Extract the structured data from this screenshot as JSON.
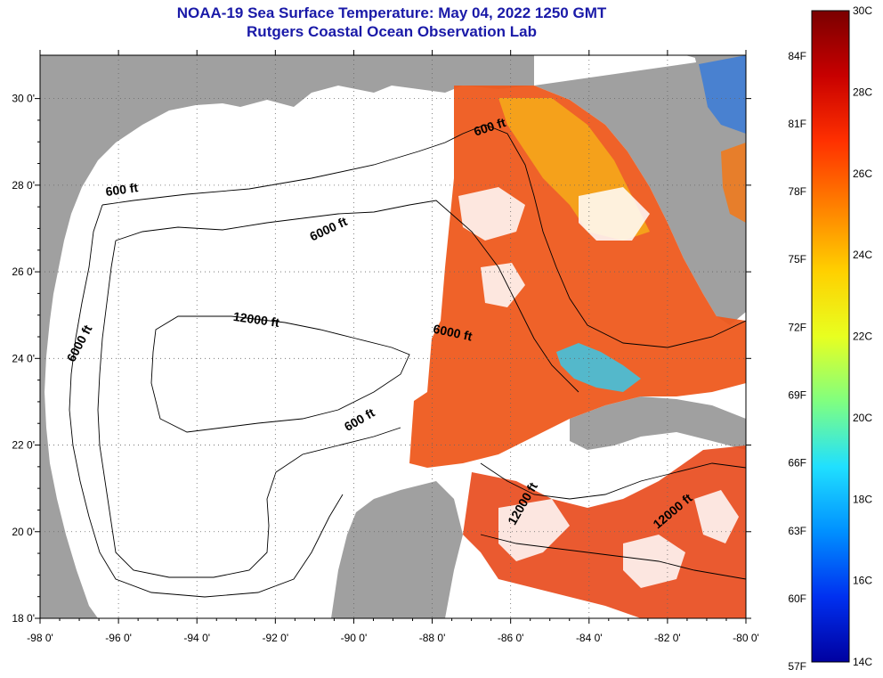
{
  "title": {
    "line1": "NOAA-19 Sea Surface Temperature:  May 04, 2022 1250 GMT",
    "line2": "Rutgers Coastal Ocean Observation Lab"
  },
  "map": {
    "lon_range": [
      -98,
      -80
    ],
    "lat_range": [
      18,
      31
    ],
    "x_ticks": [
      {
        "value": -98,
        "label": "-98 0'"
      },
      {
        "value": -96,
        "label": "-96 0'"
      },
      {
        "value": -94,
        "label": "-94 0'"
      },
      {
        "value": -92,
        "label": "-92 0'"
      },
      {
        "value": -90,
        "label": "-90 0'"
      },
      {
        "value": -88,
        "label": "-88 0'"
      },
      {
        "value": -86,
        "label": "-86 0'"
      },
      {
        "value": -84,
        "label": "-84 0'"
      },
      {
        "value": -82,
        "label": "-82 0'"
      },
      {
        "value": -80,
        "label": "-80 0'"
      }
    ],
    "y_ticks": [
      {
        "value": 30,
        "label": "30 0'"
      },
      {
        "value": 28,
        "label": "28 0'"
      },
      {
        "value": 26,
        "label": "26 0'"
      },
      {
        "value": 24,
        "label": "24 0'"
      },
      {
        "value": 22,
        "label": "22 0'"
      },
      {
        "value": 20,
        "label": "20 0'"
      },
      {
        "value": 18,
        "label": "18 0'"
      }
    ],
    "contour_labels": [
      {
        "text": "600 ft",
        "lon": -86.5,
        "lat": 29.25,
        "angle": -18
      },
      {
        "text": "600 ft",
        "lon": -95.9,
        "lat": 27.8,
        "angle": -8
      },
      {
        "text": "6000 ft",
        "lon": -90.6,
        "lat": 26.9,
        "angle": -25
      },
      {
        "text": "12000 ft",
        "lon": -92.5,
        "lat": 24.8,
        "angle": 8
      },
      {
        "text": "6000 ft",
        "lon": -96.9,
        "lat": 24.3,
        "angle": -62
      },
      {
        "text": "6000 ft",
        "lon": -87.5,
        "lat": 24.5,
        "angle": 12
      },
      {
        "text": "600 ft",
        "lon": -89.8,
        "lat": 22.5,
        "angle": -30
      },
      {
        "text": "12000 ft",
        "lon": -85.6,
        "lat": 20.6,
        "angle": -60
      },
      {
        "text": "12000 ft",
        "lon": -81.8,
        "lat": 20.4,
        "angle": -40
      }
    ],
    "colors": {
      "land": "#a0a0a0",
      "nodata": "#ffffff",
      "sst_warm": "#ee5a1e",
      "sst_yellow": "#f5b81a",
      "sst_cool": "#38c8e8"
    }
  },
  "colorbar": {
    "min_c": 14,
    "max_c": 30,
    "celsius_labels": [
      "30C",
      "28C",
      "26C",
      "24C",
      "22C",
      "20C",
      "18C",
      "16C",
      "14C"
    ],
    "fahrenheit_labels": [
      "84F",
      "81F",
      "78F",
      "75F",
      "72F",
      "69F",
      "66F",
      "63F",
      "60F",
      "57F"
    ],
    "gradient_stops": [
      "#7a0000",
      "#c80000",
      "#ff3000",
      "#ff8000",
      "#ffd000",
      "#e8ff20",
      "#80ff80",
      "#20e0ff",
      "#0090ff",
      "#0030f0",
      "#0000a0"
    ]
  }
}
